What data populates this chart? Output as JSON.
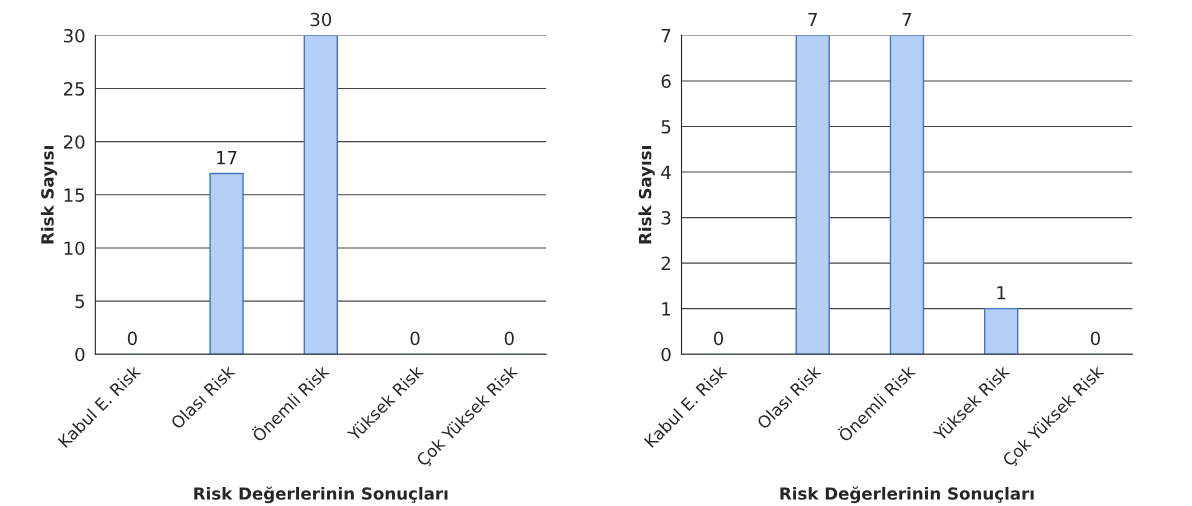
{
  "chart_data": [
    {
      "type": "bar",
      "xlabel": "Risk Değerlerinin Sonuçları",
      "ylabel": "Risk Sayısı",
      "categories": [
        "Kabul E. Risk",
        "Olası Risk",
        "Önemli Risk",
        "Yüksek Risk",
        "Çok Yüksek Risk"
      ],
      "values": [
        0,
        17,
        30,
        0,
        0
      ],
      "color": "#b4cff5",
      "ylim": [
        0,
        30
      ],
      "yticks": [
        0,
        5,
        10,
        15,
        20,
        25,
        30
      ],
      "grid": "y",
      "data_labels": true,
      "legend": false
    },
    {
      "type": "bar",
      "xlabel": "Risk Değerlerinin Sonuçları",
      "ylabel": "Risk Sayısı",
      "categories": [
        "Kabul E. Risk",
        "Olası Risk",
        "Önemli Risk",
        "Yüksek Risk",
        "Çok Yüksek Risk"
      ],
      "values": [
        0,
        7,
        7,
        1,
        0
      ],
      "color": "#b4cff5",
      "ylim": [
        0,
        7
      ],
      "yticks": [
        0,
        1,
        2,
        3,
        4,
        5,
        6,
        7
      ],
      "grid": "y",
      "data_labels": true,
      "legend": false
    }
  ]
}
